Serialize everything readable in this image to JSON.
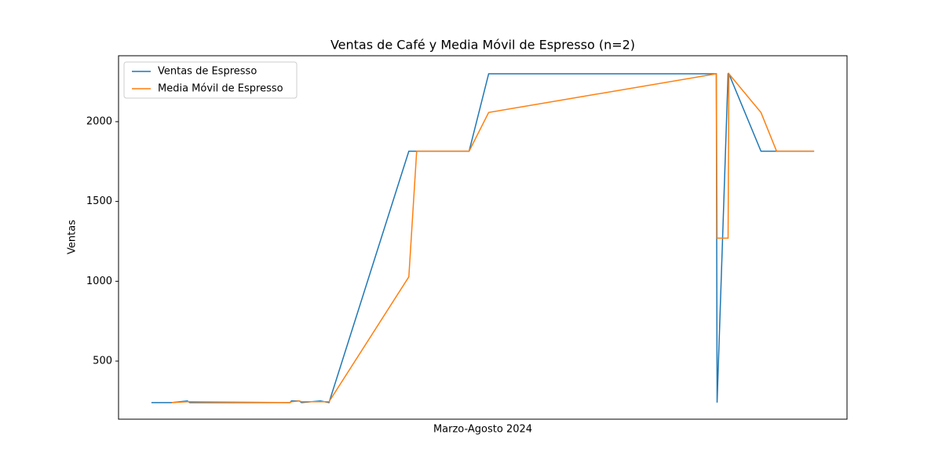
{
  "chart_data": {
    "type": "line",
    "title": "Ventas de Café y Media Móvil de Espresso (n=2)",
    "xlabel": "Marzo-Agosto 2024",
    "ylabel": "Ventas",
    "x": [
      0,
      26,
      46,
      49,
      177,
      179,
      189,
      192,
      216,
      227,
      329,
      339,
      406,
      431,
      722,
      723,
      737,
      738,
      779,
      799,
      847
    ],
    "series": [
      {
        "name": "Ventas de Espresso",
        "color": "#1f77b4",
        "values": [
          240,
          240,
          250,
          240,
          240,
          250,
          250,
          240,
          250,
          240,
          1815,
          1815,
          1815,
          2300,
          2300,
          240,
          2300,
          2300,
          1815,
          1815,
          1815
        ]
      },
      {
        "name": "Media Móvil de Espresso",
        "color": "#ff7f0e",
        "values": [
          null,
          240,
          245,
          245,
          240,
          245,
          250,
          245,
          245,
          245,
          1027.5,
          1815,
          1815,
          2057.5,
          2300,
          1270,
          1270,
          2300,
          2057.5,
          1815,
          1815
        ]
      }
    ],
    "xlim": [
      -42,
      889
    ],
    "ylim": [
      136,
      2413
    ],
    "yticks": [
      500,
      1000,
      1500,
      2000
    ],
    "legend": "upper left"
  }
}
